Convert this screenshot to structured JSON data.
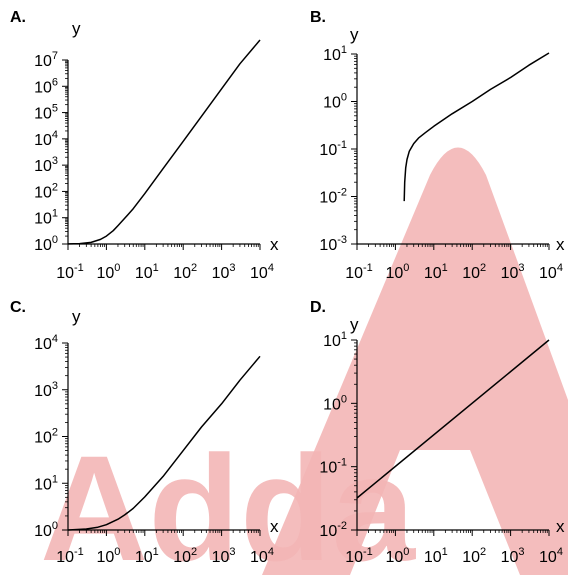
{
  "watermark": {
    "text": "Adda",
    "color": "#f3b6b6"
  },
  "chart_data": [
    {
      "type": "line",
      "panel_label": "A.",
      "xlabel": "x",
      "ylabel": "y",
      "xscale": "log",
      "yscale": "log",
      "xlim": [
        0.1,
        10000
      ],
      "ylim": [
        1,
        10000000
      ],
      "xtick_labels": [
        "10-1",
        "100",
        "101",
        "102",
        "103",
        "104"
      ],
      "ytick_labels": [
        "100",
        "101",
        "102",
        "103",
        "104",
        "105",
        "106",
        "107"
      ],
      "series": [
        {
          "x": [
            0.1,
            0.2,
            0.4,
            0.7,
            1,
            1.5,
            2,
            3,
            5,
            10,
            30,
            100,
            300,
            1000,
            3000,
            10000
          ],
          "y": [
            1.01,
            1.04,
            1.15,
            1.5,
            2,
            3.2,
            5,
            9.5,
            22,
            83,
            740,
            8100,
            72000,
            800000,
            7200000,
            80000000.0
          ]
        }
      ],
      "grid": false,
      "legend": "none"
    },
    {
      "type": "line",
      "panel_label": "B.",
      "xlabel": "x",
      "ylabel": "y",
      "xscale": "log",
      "yscale": "log",
      "xlim": [
        0.1,
        10000
      ],
      "ylim": [
        0.001,
        10
      ],
      "xtick_labels": [
        "10-1",
        "100",
        "101",
        "102",
        "103",
        "104"
      ],
      "ytick_labels": [
        "10-3",
        "10-2",
        "10-1",
        "100",
        "101"
      ],
      "series": [
        {
          "x": [
            1.7,
            1.75,
            1.85,
            2,
            2.3,
            3,
            4,
            6,
            10,
            30,
            100,
            300,
            1000,
            3000,
            10000
          ],
          "y": [
            0.008,
            0.02,
            0.04,
            0.06,
            0.09,
            0.13,
            0.17,
            0.22,
            0.3,
            0.55,
            1,
            1.8,
            3.2,
            5.8,
            10.5
          ]
        }
      ],
      "grid": false,
      "legend": "none"
    },
    {
      "type": "line",
      "panel_label": "C.",
      "xlabel": "x",
      "ylabel": "y",
      "xscale": "log",
      "yscale": "log",
      "xlim": [
        0.1,
        10000
      ],
      "ylim": [
        1,
        10000
      ],
      "xtick_labels": [
        "10-1",
        "100",
        "101",
        "102",
        "103",
        "104"
      ],
      "ytick_labels": [
        "100",
        "101",
        "102",
        "103",
        "104"
      ],
      "series": [
        {
          "x": [
            0.1,
            0.3,
            0.6,
            1,
            2,
            3,
            5,
            10,
            30,
            100,
            300,
            1000,
            3000,
            10000
          ],
          "y": [
            1.0,
            1.05,
            1.15,
            1.3,
            1.7,
            2.1,
            2.9,
            5.1,
            14,
            50,
            160,
            500,
            1600,
            5200
          ]
        }
      ],
      "grid": false,
      "legend": "none"
    },
    {
      "type": "line",
      "panel_label": "D.",
      "xlabel": "x",
      "ylabel": "y",
      "xscale": "log",
      "yscale": "log",
      "xlim": [
        0.1,
        10000
      ],
      "ylim": [
        0.01,
        10
      ],
      "xtick_labels": [
        "10-1",
        "100",
        "101",
        "102",
        "103",
        "104"
      ],
      "ytick_labels": [
        "10-2",
        "10-1",
        "100",
        "101"
      ],
      "series": [
        {
          "x": [
            0.1,
            10000
          ],
          "y": [
            0.032,
            10
          ]
        }
      ],
      "grid": false,
      "legend": "none"
    }
  ]
}
